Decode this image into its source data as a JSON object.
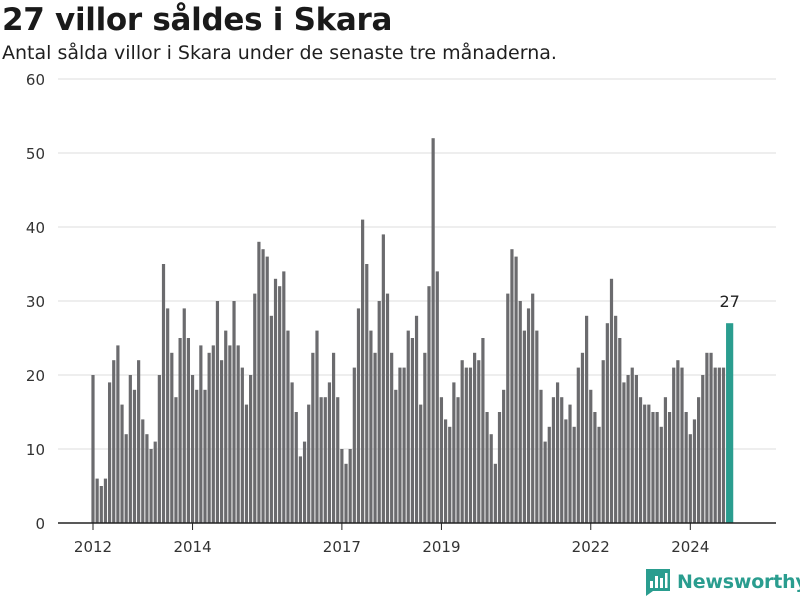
{
  "header": {
    "title": "27 villor såldes i Skara",
    "subtitle": "Antal sålda villor i Skara under de senaste tre månaderna."
  },
  "brand": {
    "name": "Newsworthy",
    "icon": "bar-chart-logo-icon"
  },
  "colors": {
    "bar": "#6b6b6e",
    "highlight": "#2a9d8f",
    "grid": "#dddddd",
    "axis": "#222222"
  },
  "chart_data": {
    "type": "bar",
    "start": "2012-01",
    "frequency": "monthly",
    "ylim": [
      0,
      60
    ],
    "yticks": [
      0,
      10,
      20,
      30,
      40,
      50,
      60
    ],
    "xticks": [
      "2012",
      "2014",
      "2017",
      "2019",
      "2022",
      "2024"
    ],
    "grid": true,
    "highlight_last": true,
    "last_label": "27",
    "values": [
      20,
      6,
      5,
      6,
      19,
      22,
      24,
      16,
      12,
      20,
      18,
      22,
      14,
      12,
      10,
      11,
      20,
      35,
      29,
      23,
      17,
      25,
      29,
      25,
      20,
      18,
      24,
      18,
      23,
      24,
      30,
      22,
      26,
      24,
      30,
      24,
      21,
      16,
      20,
      31,
      38,
      37,
      36,
      28,
      33,
      32,
      34,
      26,
      19,
      15,
      9,
      11,
      16,
      23,
      26,
      17,
      17,
      19,
      23,
      17,
      10,
      8,
      10,
      21,
      29,
      41,
      35,
      26,
      23,
      30,
      39,
      31,
      23,
      18,
      21,
      21,
      26,
      25,
      28,
      16,
      23,
      32,
      52,
      34,
      17,
      14,
      13,
      19,
      17,
      22,
      21,
      21,
      23,
      22,
      25,
      15,
      12,
      8,
      15,
      18,
      31,
      37,
      36,
      30,
      26,
      29,
      31,
      26,
      18,
      11,
      13,
      17,
      19,
      17,
      14,
      16,
      13,
      21,
      23,
      28,
      18,
      15,
      13,
      22,
      27,
      33,
      28,
      25,
      19,
      20,
      21,
      20,
      17,
      16,
      16,
      15,
      15,
      13,
      17,
      15,
      21,
      22,
      21,
      15,
      12,
      14,
      17,
      20,
      23,
      23,
      21,
      21,
      21,
      27
    ]
  }
}
